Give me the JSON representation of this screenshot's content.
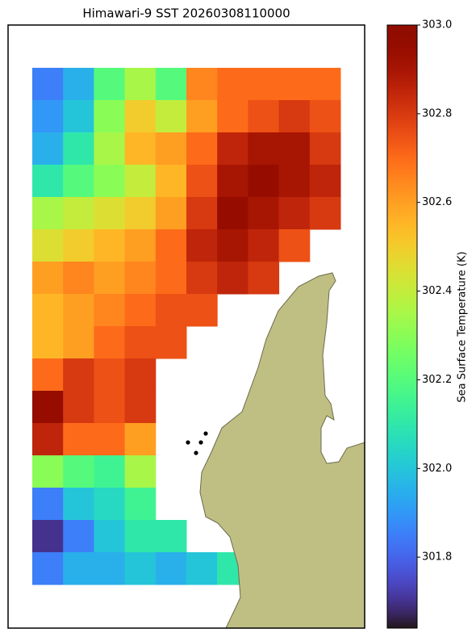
{
  "chart_data": {
    "type": "heatmap",
    "title": "Himawari-9 SST 20260308110000",
    "colorbar_label": "Sea Surface Temperature (K)",
    "colormap": "turbo",
    "clim": [
      301.64,
      303.0
    ],
    "cticks": [
      301.8,
      {
        "value": 302.0,
        "label": "302.0"
      },
      302.2,
      302.4,
      302.6,
      302.8,
      {
        "value": 303.0,
        "label": "303.0"
      }
    ],
    "values": [
      [
        301.85,
        301.95,
        302.2,
        302.35,
        302.2,
        302.65,
        302.7,
        302.7,
        302.7,
        302.7
      ],
      [
        301.9,
        302.0,
        302.3,
        302.5,
        302.4,
        302.6,
        302.7,
        302.75,
        302.8,
        302.75
      ],
      [
        301.95,
        302.1,
        302.35,
        302.55,
        302.6,
        302.7,
        302.85,
        302.9,
        302.9,
        302.8
      ],
      [
        302.1,
        302.2,
        302.3,
        302.4,
        302.55,
        302.75,
        302.9,
        302.95,
        302.9,
        302.85
      ],
      [
        302.35,
        302.4,
        302.45,
        302.5,
        302.6,
        302.8,
        302.95,
        302.9,
        302.85,
        302.8
      ],
      [
        302.45,
        302.5,
        302.55,
        302.6,
        302.7,
        302.85,
        302.9,
        302.85,
        302.75,
        null
      ],
      [
        302.6,
        302.65,
        302.6,
        302.65,
        302.7,
        302.8,
        302.85,
        302.8,
        null,
        null
      ],
      [
        302.55,
        302.6,
        302.65,
        302.7,
        302.75,
        302.75,
        null,
        null,
        null,
        null
      ],
      [
        302.55,
        302.6,
        302.7,
        302.75,
        302.75,
        null,
        null,
        null,
        null,
        null
      ],
      [
        302.7,
        302.8,
        302.75,
        302.8,
        null,
        null,
        null,
        null,
        null,
        null
      ],
      [
        302.95,
        302.8,
        302.75,
        302.8,
        null,
        null,
        null,
        null,
        null,
        null
      ],
      [
        302.85,
        302.7,
        302.7,
        302.6,
        null,
        null,
        null,
        null,
        null,
        null
      ],
      [
        302.3,
        302.2,
        302.15,
        302.35,
        null,
        null,
        null,
        null,
        null,
        null
      ],
      [
        301.85,
        302.0,
        302.05,
        302.15,
        null,
        null,
        null,
        null,
        null,
        null
      ],
      [
        301.7,
        301.85,
        302.0,
        302.1,
        302.1,
        null,
        null,
        null,
        null,
        null
      ],
      [
        301.85,
        301.95,
        301.95,
        302.0,
        301.95,
        302.0,
        302.1,
        null,
        null,
        null
      ]
    ]
  }
}
